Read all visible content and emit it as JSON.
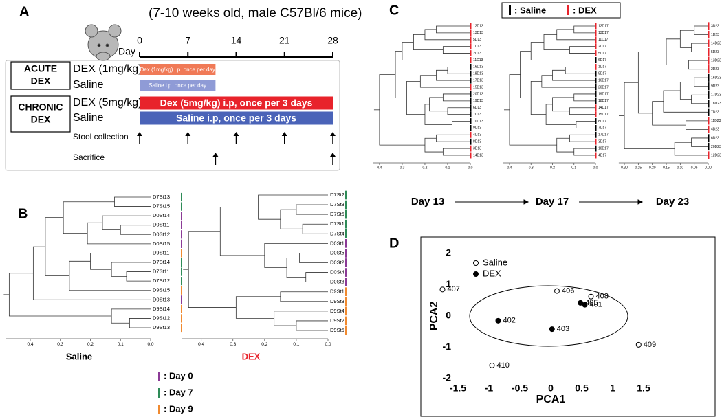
{
  "panel_a": {
    "label": "A",
    "title": "(7-10 weeks old, male C57Bl/6 mice)",
    "axis_label": "Day",
    "xlim": [
      0,
      28
    ],
    "xticks": [
      0,
      7,
      14,
      21,
      28
    ],
    "groups": [
      {
        "label": [
          "ACUTE",
          "DEX"
        ]
      },
      {
        "label": [
          "CHRONIC",
          "DEX"
        ]
      }
    ],
    "rows": [
      {
        "label": "DEX (1mg/kg)",
        "bar_text": "Dex (1mg/kg) i.p. once per day",
        "start": 0,
        "end": 11,
        "color": "#f07a57"
      },
      {
        "label": "Saline",
        "bar_text": "Saline i.p. once per day",
        "start": 0,
        "end": 11,
        "color": "#8f9bd6"
      },
      {
        "label": "DEX (5mg/kg)",
        "bar_text": "Dex (5mg/kg) i.p, once per 3 days",
        "start": 0,
        "end": 28,
        "color": "#e8232b"
      },
      {
        "label": "Saline",
        "bar_text": "Saline i.p, once per 3 days",
        "start": 0,
        "end": 28,
        "color": "#4a63b8"
      }
    ],
    "events": [
      {
        "label": "Stool collection",
        "days": [
          0,
          7,
          14,
          21,
          28
        ]
      },
      {
        "label": "Sacrifice",
        "days": [
          11,
          28
        ]
      }
    ]
  },
  "panel_b": {
    "label": "B",
    "legend": [
      {
        "label": ": Day 0",
        "color": "#8b3a96"
      },
      {
        "label": ": Day 7",
        "color": "#2e8b57"
      },
      {
        "label": ": Day 9",
        "color": "#f08a30"
      }
    ],
    "trees": [
      {
        "title": "Saline",
        "title_color": "#000000",
        "xlim": [
          0.48,
          0
        ],
        "xticks": [
          0.4,
          0.3,
          0.2,
          0.1,
          {
            "value": 0,
            "label": "0.0"
          }
        ],
        "leaves": [
          "D7St13",
          "D7St15",
          "D0St14",
          "D0St11",
          "D0St12",
          "D0St15",
          "D9St11",
          "D7St14",
          "D7St11",
          "D7St12",
          "D9St15",
          "D0St13",
          "D9St14",
          "D9St12",
          "D9St13"
        ],
        "leaf_groups": [
          1,
          1,
          0,
          0,
          0,
          0,
          2,
          1,
          1,
          1,
          2,
          0,
          2,
          2,
          2
        ],
        "merges": [
          [
            0,
            1,
            0.12
          ],
          [
            3,
            4,
            0.1
          ],
          [
            2,
            16,
            0.16
          ],
          [
            17,
            5,
            0.21
          ],
          [
            15,
            18,
            0.29
          ],
          [
            8,
            9,
            0.08
          ],
          [
            7,
            20,
            0.13
          ],
          [
            6,
            21,
            0.2
          ],
          [
            22,
            10,
            0.27
          ],
          [
            19,
            23,
            0.35
          ],
          [
            24,
            11,
            0.39
          ],
          [
            13,
            14,
            0.07
          ],
          [
            12,
            26,
            0.13
          ],
          [
            25,
            27,
            0.47
          ]
        ]
      },
      {
        "title": "DEX",
        "title_color": "#e8232b",
        "xlim": [
          0.46,
          0
        ],
        "xticks": [
          0.4,
          0.3,
          0.2,
          0.1,
          {
            "value": 0,
            "label": "0.0"
          }
        ],
        "leaves": [
          "D7St2",
          "D7St3",
          "D7St5",
          "D7St1",
          "D7St4",
          "D0St1",
          "D0St5",
          "D0St2",
          "D0St4",
          "D0St3",
          "D9St1",
          "D9St3",
          "D9St4",
          "D9St2",
          "D9St5"
        ],
        "leaf_groups": [
          1,
          1,
          1,
          1,
          1,
          0,
          0,
          0,
          0,
          0,
          2,
          2,
          2,
          2,
          2
        ],
        "merges": [
          [
            1,
            2,
            0.1
          ],
          [
            3,
            4,
            0.08
          ],
          [
            15,
            16,
            0.15
          ],
          [
            0,
            17,
            0.22
          ],
          [
            6,
            7,
            0.09
          ],
          [
            8,
            9,
            0.07
          ],
          [
            19,
            20,
            0.13
          ],
          [
            5,
            21,
            0.2
          ],
          [
            18,
            22,
            0.34
          ],
          [
            10,
            11,
            0.15
          ],
          [
            13,
            14,
            0.1
          ],
          [
            12,
            25,
            0.17
          ],
          [
            24,
            26,
            0.29
          ],
          [
            23,
            27,
            0.44
          ]
        ]
      }
    ]
  },
  "panel_c": {
    "label": "C",
    "legend": [
      {
        "label": ": Saline",
        "color": "#000000"
      },
      {
        "label": ": DEX",
        "color": "#e8232b"
      }
    ],
    "trees": [
      {
        "title": "Day 13",
        "xlim": [
          0.43,
          0
        ],
        "xticks": [
          0.4,
          0.3,
          0.2,
          0.1,
          {
            "value": 0,
            "label": "0.0"
          }
        ],
        "leaves": [
          "12D13",
          "13D13",
          "5D13",
          "1D13",
          "2D13",
          "11D13",
          "16D13",
          "18D13",
          "17D13",
          "15D13",
          "20D13",
          "19D13",
          "6D13",
          "7D13",
          "10D13",
          "9D13",
          "4D13",
          "8D13",
          "3D13",
          "14D13"
        ],
        "leaf_groups": [
          1,
          1,
          1,
          1,
          1,
          1,
          0,
          0,
          0,
          1,
          0,
          0,
          0,
          0,
          0,
          0,
          1,
          0,
          1,
          1
        ],
        "merges": [
          [
            0,
            1,
            0.15
          ],
          [
            20,
            2,
            0.2
          ],
          [
            3,
            4,
            0.12
          ],
          [
            21,
            22,
            0.25
          ],
          [
            23,
            5,
            0.3
          ],
          [
            6,
            7,
            0.1
          ],
          [
            25,
            8,
            0.15
          ],
          [
            26,
            9,
            0.22
          ],
          [
            10,
            11,
            0.12
          ],
          [
            12,
            13,
            0.1
          ],
          [
            28,
            29,
            0.18
          ],
          [
            14,
            15,
            0.08
          ],
          [
            30,
            31,
            0.2
          ],
          [
            27,
            32,
            0.28
          ],
          [
            24,
            33,
            0.33
          ],
          [
            16,
            17,
            0.15
          ],
          [
            18,
            19,
            0.12
          ],
          [
            35,
            36,
            0.2
          ],
          [
            34,
            37,
            0.4
          ]
        ]
      },
      {
        "title": "Day 17",
        "xlim": [
          0.43,
          0
        ],
        "xticks": [
          0.4,
          0.3,
          0.2,
          0.1,
          {
            "value": 0,
            "label": "0.0"
          }
        ],
        "leaves": [
          "12D17",
          "13D17",
          "11D17",
          "2D17",
          "5D17",
          "6D17",
          "1D17",
          "9D17",
          "16D17",
          "20D17",
          "19D17",
          "18D17",
          "14D17",
          "15D17",
          "8D17",
          "7D17",
          "17D17",
          "3D17",
          "10D17",
          "4D17"
        ],
        "leaf_groups": [
          1,
          1,
          1,
          1,
          1,
          0,
          1,
          0,
          0,
          0,
          0,
          0,
          1,
          1,
          0,
          0,
          0,
          1,
          0,
          1
        ],
        "merges": [
          [
            0,
            1,
            0.1
          ],
          [
            20,
            2,
            0.18
          ],
          [
            3,
            4,
            0.12
          ],
          [
            21,
            22,
            0.24
          ],
          [
            23,
            5,
            0.3
          ],
          [
            6,
            7,
            0.14
          ],
          [
            25,
            8,
            0.2
          ],
          [
            26,
            9,
            0.25
          ],
          [
            10,
            11,
            0.1
          ],
          [
            12,
            13,
            0.12
          ],
          [
            28,
            29,
            0.2
          ],
          [
            14,
            15,
            0.09
          ],
          [
            30,
            31,
            0.23
          ],
          [
            27,
            32,
            0.3
          ],
          [
            24,
            33,
            0.35
          ],
          [
            16,
            17,
            0.12
          ],
          [
            18,
            19,
            0.1
          ],
          [
            35,
            36,
            0.18
          ],
          [
            34,
            37,
            0.4
          ]
        ]
      },
      {
        "title": "Day 23",
        "xlim": [
          0.32,
          0
        ],
        "xticks": [
          {
            "value": 0.3,
            "label": "0.30"
          },
          {
            "value": 0.25,
            "label": "0.25"
          },
          {
            "value": 0.2,
            "label": "0.20"
          },
          {
            "value": 0.15,
            "label": "0.15"
          },
          {
            "value": 0.1,
            "label": "0.10"
          },
          {
            "value": 0.05,
            "label": "0.05"
          },
          {
            "value": 0,
            "label": "0.00"
          }
        ],
        "leaves": [
          "3D23",
          "1D23",
          "14D23",
          "5D23",
          "13D23",
          "2D23",
          "16D23",
          "9D23",
          "17D23",
          "18D23",
          "7D23",
          "11D23",
          "4D23",
          "6D23",
          "20D23",
          "12D23"
        ],
        "leaf_groups": [
          1,
          1,
          1,
          1,
          1,
          1,
          0,
          0,
          0,
          0,
          0,
          1,
          1,
          0,
          0,
          1
        ],
        "merges": [
          [
            0,
            1,
            0.05
          ],
          [
            2,
            3,
            0.06
          ],
          [
            16,
            17,
            0.1
          ],
          [
            4,
            5,
            0.07
          ],
          [
            18,
            19,
            0.15
          ],
          [
            6,
            7,
            0.05
          ],
          [
            8,
            9,
            0.06
          ],
          [
            21,
            22,
            0.1
          ],
          [
            23,
            10,
            0.16
          ],
          [
            11,
            12,
            0.08
          ],
          [
            24,
            25,
            0.2
          ],
          [
            20,
            26,
            0.25
          ],
          [
            13,
            14,
            0.06
          ],
          [
            28,
            15,
            0.12
          ],
          [
            27,
            29,
            0.3
          ]
        ]
      }
    ]
  },
  "chart_data": {
    "type": "scatter",
    "label": "D",
    "xlabel": "PCA1",
    "ylabel": "PCA2",
    "xlim": [
      -1.6,
      1.6
    ],
    "ylim": [
      -2,
      2
    ],
    "xticks": [
      -1.5,
      -1,
      -0.5,
      0,
      0.5,
      1,
      1.5
    ],
    "yticks": [
      -2,
      -1,
      0,
      1,
      2
    ],
    "series": [
      {
        "name": "Saline",
        "marker": "open",
        "color": "#000000",
        "x": [
          -1.75,
          0.1,
          0.65,
          1.42,
          -0.95
        ],
        "y": [
          0.85,
          0.8,
          0.62,
          -0.92,
          -1.58
        ],
        "point_labels": [
          "407",
          "406",
          "408",
          "409",
          "410"
        ]
      },
      {
        "name": "DEX",
        "marker": "filled",
        "color": "#000000",
        "x": [
          0.48,
          0.55,
          -0.85,
          0.02
        ],
        "y": [
          0.42,
          0.36,
          -0.15,
          -0.42
        ],
        "point_labels": [
          "405",
          "401",
          "402",
          "403"
        ]
      }
    ]
  }
}
